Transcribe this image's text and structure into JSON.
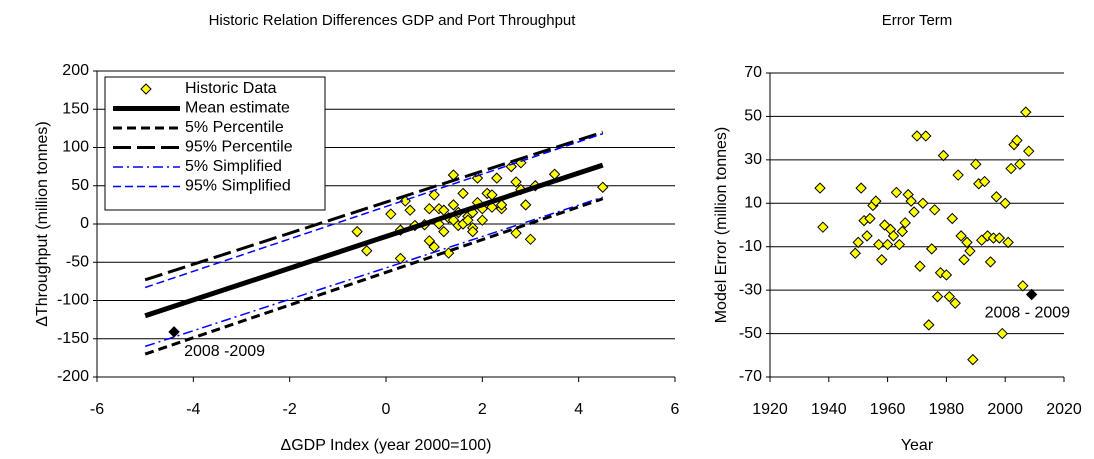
{
  "chart_data": [
    {
      "type": "scatter",
      "title": "Historic Relation Differences GDP and Port Throughput",
      "xlabel": "ΔGDP Index (year 2000=100)",
      "ylabel": "ΔThroughput (million tonnes)",
      "xlim": [
        -6,
        6
      ],
      "xticks": [
        -6,
        -4,
        -2,
        0,
        2,
        4,
        6
      ],
      "ylim": [
        -200,
        200
      ],
      "yticks": [
        -200,
        -150,
        -100,
        -50,
        0,
        50,
        100,
        150,
        200
      ],
      "grid": true,
      "legend": "upper left",
      "series": [
        {
          "name": "Historic Data",
          "kind": "points",
          "color": "#ffff00",
          "x": [
            -0.6,
            -0.4,
            0.1,
            0.3,
            0.3,
            0.4,
            0.5,
            0.6,
            0.8,
            0.9,
            0.9,
            1.0,
            1.0,
            1.1,
            1.1,
            1.2,
            1.2,
            1.3,
            1.3,
            1.4,
            1.4,
            1.4,
            1.5,
            1.5,
            1.6,
            1.6,
            1.7,
            1.7,
            1.8,
            1.8,
            1.8,
            1.9,
            1.9,
            2.0,
            2.0,
            2.1,
            2.2,
            2.2,
            2.3,
            2.4,
            2.4,
            2.6,
            2.7,
            2.7,
            2.8,
            2.8,
            2.9,
            3.0,
            3.1,
            3.5,
            4.5
          ],
          "values": [
            -10,
            -35,
            13,
            -8,
            -45,
            30,
            18,
            -2,
            -1,
            20,
            -22,
            -30,
            38,
            0,
            20,
            -10,
            18,
            -38,
            8,
            25,
            64,
            5,
            15,
            -2,
            40,
            0,
            10,
            5,
            15,
            -5,
            -10,
            60,
            28,
            5,
            20,
            40,
            38,
            22,
            60,
            20,
            25,
            75,
            55,
            -12,
            80,
            45,
            25,
            -20,
            50,
            65,
            48
          ]
        },
        {
          "name": "Mean estimate",
          "kind": "line",
          "style": "thick",
          "color": "#000000",
          "x": [
            -5,
            4.5
          ],
          "values": [
            -120,
            77
          ]
        },
        {
          "name": "5% Percentile",
          "kind": "line",
          "style": "dash",
          "color": "#000000",
          "x": [
            -5,
            4.5
          ],
          "values": [
            -170,
            33
          ]
        },
        {
          "name": "95% Percentile",
          "kind": "line",
          "style": "longdash",
          "color": "#000000",
          "x": [
            -5,
            4.5
          ],
          "values": [
            -73,
            120
          ]
        },
        {
          "name": "5% Simplified",
          "kind": "line",
          "style": "dashdot",
          "color": "#0000ff",
          "x": [
            -5,
            4.5
          ],
          "values": [
            -160,
            35
          ]
        },
        {
          "name": "95% Simplified",
          "kind": "line",
          "style": "thindash",
          "color": "#0000ff",
          "x": [
            -5,
            4.5
          ],
          "values": [
            -83,
            118
          ]
        }
      ],
      "highlight": {
        "x": -4.4,
        "value": -141,
        "color": "#000000",
        "annotation": "2008 -2009"
      }
    },
    {
      "type": "scatter",
      "title": "Error Term",
      "xlabel": "Year",
      "ylabel": "Model Error (million tonnes)",
      "xlim": [
        1920,
        2020
      ],
      "xticks": [
        1920,
        1940,
        1960,
        1980,
        2000,
        2020
      ],
      "ylim": [
        -70,
        70
      ],
      "yticks": [
        -70,
        -50,
        -30,
        -10,
        10,
        30,
        50,
        70
      ],
      "grid": true,
      "series": [
        {
          "kind": "points",
          "color": "#ffff00",
          "x": [
            1937,
            1938,
            1949,
            1950,
            1951,
            1952,
            1953,
            1954,
            1955,
            1956,
            1957,
            1958,
            1959,
            1960,
            1961,
            1962,
            1963,
            1964,
            1965,
            1966,
            1967,
            1968,
            1969,
            1970,
            1971,
            1972,
            1973,
            1974,
            1975,
            1976,
            1977,
            1978,
            1979,
            1980,
            1981,
            1982,
            1983,
            1984,
            1985,
            1986,
            1987,
            1988,
            1989,
            1990,
            1991,
            1992,
            1993,
            1994,
            1995,
            1996,
            1997,
            1998,
            1999,
            2000,
            2001,
            2002,
            2003,
            2004,
            2005,
            2006,
            2007,
            2008
          ],
          "values": [
            17,
            -1,
            -13,
            -8,
            17,
            2,
            -5,
            3,
            9,
            11,
            -9,
            -16,
            0,
            -9,
            -2,
            -5,
            15,
            -9,
            -3,
            1,
            14,
            11,
            6,
            41,
            -19,
            10,
            41,
            -46,
            -11,
            7,
            -33,
            -22,
            32,
            -23,
            -33,
            3,
            -36,
            23,
            -5,
            -16,
            -8,
            -12,
            -62,
            28,
            19,
            -7,
            20,
            -5,
            -17,
            -6,
            13,
            -6,
            -50,
            10,
            -8,
            26,
            37,
            39,
            28,
            -28,
            52,
            34
          ]
        }
      ],
      "highlight": {
        "x": 2009,
        "value": -32,
        "color": "#000000",
        "annotation": "2008 - 2009"
      }
    }
  ]
}
